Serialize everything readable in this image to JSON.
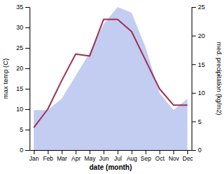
{
  "chart_data": {
    "type": "line",
    "categories": [
      "Jan",
      "Feb",
      "Mar",
      "Apr",
      "May",
      "Jun",
      "Jul",
      "Aug",
      "Sep",
      "Oct",
      "Nov",
      "Dec"
    ],
    "xlabel": "date (month)",
    "ylabel": "max temp (C)",
    "y2label": "med. precipitation (kg/m2)",
    "series": [
      {
        "type": "area",
        "axis": "y2",
        "color": "#b8c4ee",
        "values": [
          7,
          7,
          9,
          13,
          17,
          22,
          25,
          24,
          18,
          10,
          7,
          9
        ]
      },
      {
        "type": "line",
        "color": "#9e3050",
        "values": [
          5.5,
          10.0,
          17.0,
          23.5,
          23.0,
          32.0,
          32.0,
          29.0,
          22.0,
          15.0,
          11.0,
          11.0
        ]
      }
    ],
    "ylim": [
      0,
      35
    ],
    "yticks": [
      0,
      5,
      10,
      15,
      20,
      25,
      30,
      35
    ],
    "y2lim": [
      0,
      25
    ],
    "y2ticks": [
      0,
      5,
      10,
      15,
      20,
      25
    ],
    "grid": false
  }
}
